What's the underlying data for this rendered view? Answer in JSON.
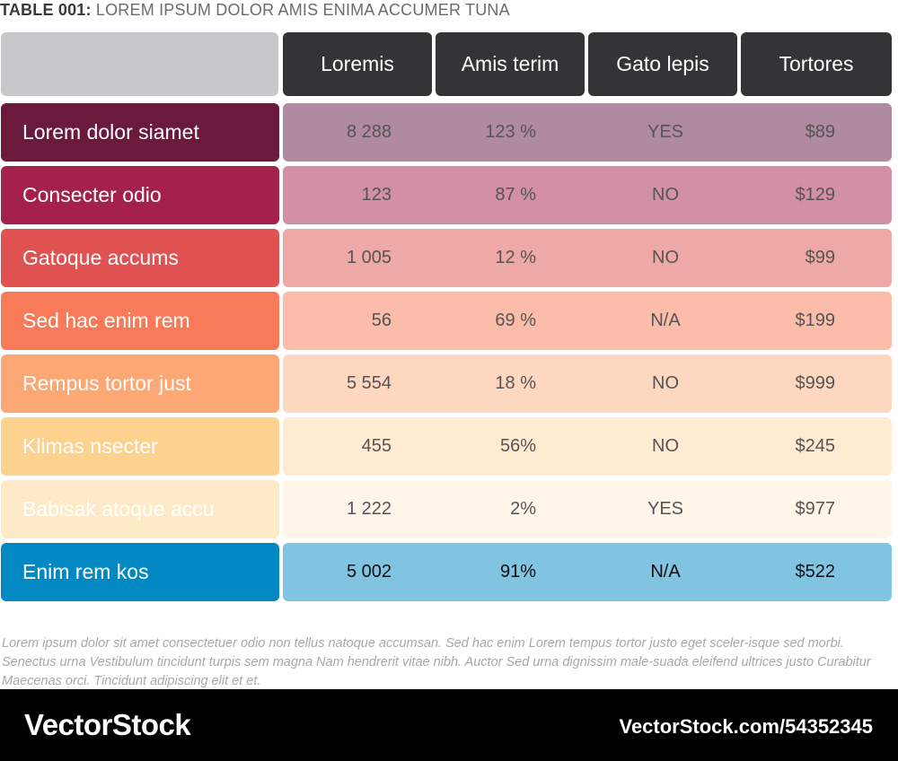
{
  "title": {
    "prefix": "TABLE 001:",
    "text": "LOREM IPSUM DOLOR AMIS ENIMA ACCUMER TUNA"
  },
  "columns": [
    "Loremis",
    "Amis terim",
    "Gato lepis",
    "Tortores"
  ],
  "rows": [
    {
      "label": "Lorem dolor siamet",
      "values": [
        "8 288",
        "123 %",
        "YES",
        "$89"
      ],
      "label_color": "#6b1a3d",
      "data_color": "#b08aa0",
      "label_text_color": "#ffffff"
    },
    {
      "label": "Consecter odio",
      "values": [
        "123",
        "87 %",
        "NO",
        "$129"
      ],
      "label_color": "#a3214a",
      "data_color": "#d38fa4",
      "label_text_color": "#ffffff"
    },
    {
      "label": "Gatoque accums",
      "values": [
        "1 005",
        "12 %",
        "NO",
        "$99"
      ],
      "label_color": "#e05251",
      "data_color": "#eea8a5",
      "label_text_color": "#ffffff"
    },
    {
      "label": "Sed hac enim rem",
      "values": [
        "56",
        "69 %",
        "N/A",
        "$199"
      ],
      "label_color": "#f97a58",
      "data_color": "#fbbdaa",
      "label_text_color": "#ffffff"
    },
    {
      "label": "Rempus tortor just",
      "values": [
        "5 554",
        "18 %",
        "NO",
        "$999"
      ],
      "label_color": "#fca774",
      "data_color": "#fdd7bf",
      "label_text_color": "#ffffff"
    },
    {
      "label": "Klimas nsecter",
      "values": [
        "455",
        "56%",
        "NO",
        "$245"
      ],
      "label_color": "#fdd18e",
      "data_color": "#feebd2",
      "label_text_color": "#ffffff"
    },
    {
      "label": "Babisak atoque accu",
      "values": [
        "1 222",
        "2%",
        "YES",
        "$977"
      ],
      "label_color": "#ffeac8",
      "data_color": "#fff6e9",
      "label_text_color": "#ffffff"
    },
    {
      "label": "Enim rem kos",
      "values": [
        "5 002",
        "91%",
        "N/A",
        "$522"
      ],
      "label_color": "#0289c4",
      "data_color": "#80c4e1",
      "label_text_color": "#ffffff",
      "highlight": true
    }
  ],
  "colors": {
    "header_bg": "#333436",
    "corner_bg": "#c8c8ca"
  },
  "footnote": "Lorem ipsum dolor sit amet consectetuer odio non tellus natoque accumsan. Sed hac enim Lorem tempus tortor justo eget sceler-isque sed morbi. Senectus urna Vestibulum tincidunt turpis sem magna Nam hendrerit vitae nibh. Auctor Sed urna dignissim male-suada eleifend ultrices justo Curabitur Maecenas orci. Tincidunt adipiscing elit et et.",
  "brand": {
    "logo": "VectorStock",
    "url": "VectorStock.com/54352345"
  }
}
